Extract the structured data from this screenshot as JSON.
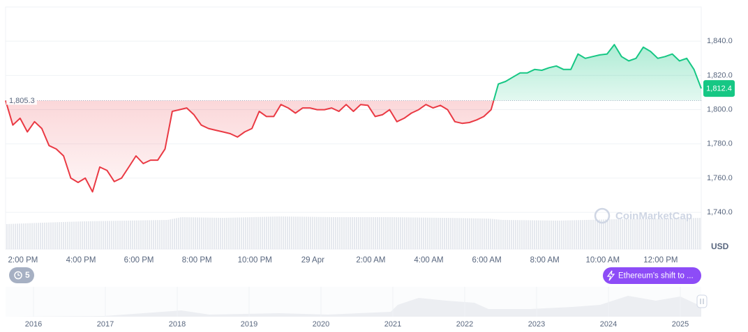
{
  "chart_data": {
    "type": "line",
    "x": [
      13.4,
      13.65,
      13.9,
      14.15,
      14.4,
      14.65,
      14.9,
      15.15,
      15.4,
      15.65,
      15.9,
      16.15,
      16.4,
      16.65,
      16.9,
      17.15,
      17.4,
      17.65,
      17.9,
      18.15,
      18.4,
      18.65,
      18.9,
      19.15,
      19.4,
      19.65,
      19.9,
      20.15,
      20.4,
      20.65,
      20.9,
      21.15,
      21.4,
      21.65,
      21.9,
      22.15,
      22.4,
      22.65,
      22.9,
      23.15,
      23.4,
      23.65,
      23.9,
      24.15,
      24.4,
      24.65,
      24.9,
      25.15,
      25.4,
      25.65,
      25.9,
      26.15,
      26.4,
      26.65,
      26.9,
      27.15,
      27.4,
      27.65,
      27.9,
      28.15,
      28.4,
      28.65,
      28.9,
      29.15,
      29.4,
      29.65,
      29.9,
      30.15,
      30.4,
      30.65,
      30.9,
      31.15,
      31.4,
      31.65,
      31.9,
      32.15,
      32.4,
      32.65,
      32.9,
      33.15,
      33.4,
      33.65,
      33.9,
      34.15,
      34.4,
      34.65,
      34.9,
      35.15,
      35.4,
      35.65,
      35.9,
      36.15,
      36.4,
      36.65,
      36.9,
      37.15,
      37.4
    ],
    "values": [
      1805.3,
      1791,
      1795,
      1787,
      1793,
      1789,
      1779,
      1777,
      1773,
      1760,
      1757.5,
      1760,
      1752,
      1766.5,
      1764.5,
      1758,
      1760,
      1766.5,
      1773,
      1768.5,
      1770.5,
      1770.5,
      1777,
      1799,
      1800,
      1801,
      1797,
      1791,
      1789,
      1788,
      1787,
      1786,
      1784,
      1787,
      1789,
      1799,
      1796,
      1796,
      1803,
      1801,
      1798,
      1801,
      1801,
      1800,
      1800,
      1801,
      1799,
      1803,
      1799,
      1803,
      1802.5,
      1796,
      1797,
      1800,
      1793,
      1795,
      1798,
      1800,
      1803,
      1801,
      1802.5,
      1800,
      1793,
      1792,
      1792.5,
      1794,
      1796,
      1800,
      1815,
      1816.5,
      1819,
      1821.5,
      1821.5,
      1823.5,
      1823,
      1824.5,
      1825.5,
      1823.5,
      1823.5,
      1832.5,
      1830,
      1831,
      1832,
      1832.5,
      1838,
      1831,
      1828.5,
      1830,
      1836.5,
      1834,
      1830,
      1831,
      1832.5,
      1828.5,
      1830,
      1823.5,
      1812.4
    ],
    "up_color": "#16c784",
    "down_color": "#ea3943",
    "baseline": {
      "value": 1805.3,
      "label": "1,805.3"
    },
    "current_price": {
      "value": 1812.4,
      "label": "1,812.4"
    },
    "xlim": [
      13.4,
      37.4
    ],
    "xticks": [
      {
        "value": 14,
        "label": "2:00 PM"
      },
      {
        "value": 16,
        "label": "4:00 PM"
      },
      {
        "value": 18,
        "label": "6:00 PM"
      },
      {
        "value": 20,
        "label": "8:00 PM"
      },
      {
        "value": 22,
        "label": "10:00 PM"
      },
      {
        "value": 24,
        "label": "29 Apr"
      },
      {
        "value": 26,
        "label": "2:00 AM"
      },
      {
        "value": 28,
        "label": "4:00 AM"
      },
      {
        "value": 30,
        "label": "6:00 AM"
      },
      {
        "value": 32,
        "label": "8:00 AM"
      },
      {
        "value": 34,
        "label": "10:00 AM"
      },
      {
        "value": 36,
        "label": "12:00 PM"
      }
    ],
    "ylim": [
      1718.5,
      1860
    ],
    "yticks": [
      {
        "value": 1740,
        "label": "1,740.0"
      },
      {
        "value": 1760,
        "label": "1,760.0"
      },
      {
        "value": 1780,
        "label": "1,780.0"
      },
      {
        "value": 1800,
        "label": "1,800.0"
      },
      {
        "value": 1820,
        "label": "1,820.0"
      },
      {
        "value": 1840,
        "label": "1,840.0"
      }
    ],
    "grid": true,
    "y_unit": "USD",
    "watermark": "CoinMarketCap",
    "events_count": 5,
    "event_label": "Ethereum's shift to ...",
    "navigator_labels": [
      "2016",
      "2017",
      "2018",
      "2019",
      "2020",
      "2021",
      "2022",
      "2023",
      "2024",
      "2025"
    ]
  }
}
